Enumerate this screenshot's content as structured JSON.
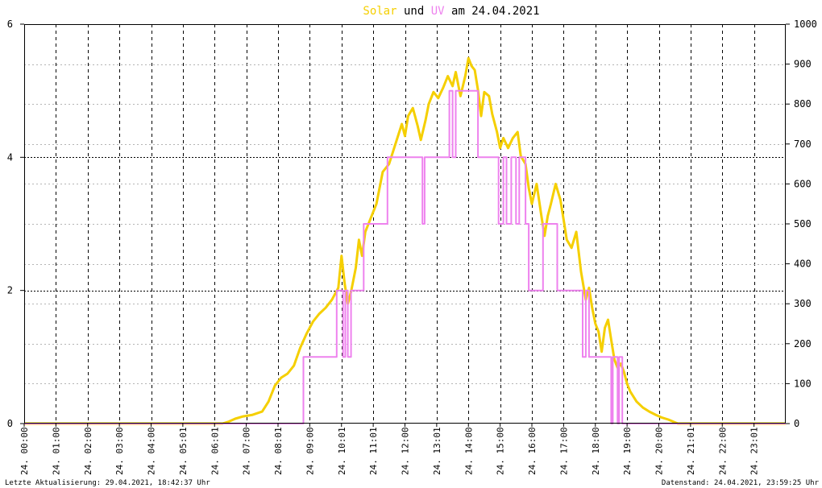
{
  "chart_data": {
    "type": "line",
    "title": {
      "word1": "Solar",
      "word2": "und",
      "word3": "UV",
      "word4": "am 24.04.2021"
    },
    "colors": {
      "solar": "#f5cf00",
      "uv": "#ee82ee",
      "title_text": "#000000",
      "frame": "#000000",
      "grid": "#000000"
    },
    "y_left": {
      "min": 0,
      "max": 6,
      "ticks": [
        0,
        2,
        4,
        6
      ]
    },
    "y_right": {
      "min": 0,
      "max": 1000,
      "ticks": [
        0,
        100,
        200,
        300,
        400,
        500,
        600,
        700,
        800,
        900,
        1000
      ]
    },
    "x": {
      "min": 0,
      "max": 24,
      "unit": "hours"
    },
    "x_ticks": [
      {
        "h": 0,
        "label": "24. 00:00"
      },
      {
        "h": 1,
        "label": "24. 01:00"
      },
      {
        "h": 2,
        "label": "24. 02:00"
      },
      {
        "h": 3,
        "label": "24. 03:00"
      },
      {
        "h": 4,
        "label": "24. 04:00"
      },
      {
        "h": 5,
        "label": "24. 05:01"
      },
      {
        "h": 6,
        "label": "24. 06:01"
      },
      {
        "h": 7,
        "label": "24. 07:00"
      },
      {
        "h": 8,
        "label": "24. 08:01"
      },
      {
        "h": 9,
        "label": "24. 09:00"
      },
      {
        "h": 10,
        "label": "24. 10:01"
      },
      {
        "h": 11,
        "label": "24. 11:01"
      },
      {
        "h": 12,
        "label": "24. 12:00"
      },
      {
        "h": 13,
        "label": "24. 13:01"
      },
      {
        "h": 14,
        "label": "24. 14:00"
      },
      {
        "h": 15,
        "label": "24. 15:00"
      },
      {
        "h": 16,
        "label": "24. 16:00"
      },
      {
        "h": 17,
        "label": "24. 17:00"
      },
      {
        "h": 18,
        "label": "24. 18:00"
      },
      {
        "h": 19,
        "label": "24. 19:00"
      },
      {
        "h": 20,
        "label": "24. 20:00"
      },
      {
        "h": 21,
        "label": "24. 21:01"
      },
      {
        "h": 22,
        "label": "24. 22:00"
      },
      {
        "h": 23,
        "label": "24. 23:01"
      }
    ],
    "grid": true,
    "series": [
      {
        "name": "Solar",
        "axis": "right",
        "step": false,
        "points": [
          [
            0,
            0
          ],
          [
            6.25,
            0
          ],
          [
            6.45,
            5
          ],
          [
            6.65,
            12
          ],
          [
            6.9,
            18
          ],
          [
            7.2,
            22
          ],
          [
            7.5,
            30
          ],
          [
            7.7,
            55
          ],
          [
            7.9,
            95
          ],
          [
            8.1,
            115
          ],
          [
            8.3,
            125
          ],
          [
            8.5,
            145
          ],
          [
            8.7,
            190
          ],
          [
            8.9,
            225
          ],
          [
            9.1,
            255
          ],
          [
            9.3,
            275
          ],
          [
            9.5,
            290
          ],
          [
            9.7,
            310
          ],
          [
            9.9,
            340
          ],
          [
            10.0,
            420
          ],
          [
            10.1,
            350
          ],
          [
            10.2,
            300
          ],
          [
            10.3,
            330
          ],
          [
            10.45,
            390
          ],
          [
            10.55,
            460
          ],
          [
            10.65,
            420
          ],
          [
            10.75,
            480
          ],
          [
            10.9,
            510
          ],
          [
            11.1,
            550
          ],
          [
            11.3,
            630
          ],
          [
            11.5,
            650
          ],
          [
            11.7,
            700
          ],
          [
            11.9,
            750
          ],
          [
            12.0,
            720
          ],
          [
            12.1,
            770
          ],
          [
            12.25,
            790
          ],
          [
            12.4,
            745
          ],
          [
            12.5,
            710
          ],
          [
            12.65,
            760
          ],
          [
            12.75,
            800
          ],
          [
            12.9,
            830
          ],
          [
            13.05,
            815
          ],
          [
            13.2,
            840
          ],
          [
            13.35,
            870
          ],
          [
            13.5,
            845
          ],
          [
            13.6,
            880
          ],
          [
            13.75,
            820
          ],
          [
            13.9,
            870
          ],
          [
            14.0,
            915
          ],
          [
            14.1,
            895
          ],
          [
            14.2,
            885
          ],
          [
            14.3,
            835
          ],
          [
            14.4,
            770
          ],
          [
            14.5,
            830
          ],
          [
            14.65,
            820
          ],
          [
            14.75,
            775
          ],
          [
            14.9,
            730
          ],
          [
            15.0,
            690
          ],
          [
            15.1,
            715
          ],
          [
            15.25,
            690
          ],
          [
            15.4,
            715
          ],
          [
            15.55,
            730
          ],
          [
            15.65,
            670
          ],
          [
            15.8,
            650
          ],
          [
            15.9,
            590
          ],
          [
            16.0,
            550
          ],
          [
            16.15,
            600
          ],
          [
            16.3,
            520
          ],
          [
            16.4,
            470
          ],
          [
            16.5,
            520
          ],
          [
            16.6,
            550
          ],
          [
            16.75,
            600
          ],
          [
            16.9,
            560
          ],
          [
            17.0,
            510
          ],
          [
            17.1,
            460
          ],
          [
            17.25,
            440
          ],
          [
            17.4,
            480
          ],
          [
            17.55,
            380
          ],
          [
            17.7,
            310
          ],
          [
            17.8,
            340
          ],
          [
            17.9,
            290
          ],
          [
            18.0,
            250
          ],
          [
            18.1,
            230
          ],
          [
            18.2,
            180
          ],
          [
            18.3,
            240
          ],
          [
            18.4,
            260
          ],
          [
            18.5,
            210
          ],
          [
            18.6,
            160
          ],
          [
            18.7,
            140
          ],
          [
            18.8,
            150
          ],
          [
            18.9,
            130
          ],
          [
            19.0,
            100
          ],
          [
            19.1,
            80
          ],
          [
            19.3,
            55
          ],
          [
            19.5,
            40
          ],
          [
            19.7,
            30
          ],
          [
            19.9,
            22
          ],
          [
            20.1,
            15
          ],
          [
            20.3,
            10
          ],
          [
            20.45,
            5
          ],
          [
            20.6,
            0
          ],
          [
            24,
            0
          ]
        ]
      },
      {
        "name": "UV",
        "axis": "left",
        "step": true,
        "points": [
          [
            0,
            0
          ],
          [
            8.8,
            0
          ],
          [
            8.8,
            1
          ],
          [
            9.85,
            1
          ],
          [
            9.85,
            2
          ],
          [
            10.05,
            2
          ],
          [
            10.05,
            1
          ],
          [
            10.12,
            1
          ],
          [
            10.12,
            2
          ],
          [
            10.2,
            2
          ],
          [
            10.2,
            1
          ],
          [
            10.3,
            1
          ],
          [
            10.3,
            2
          ],
          [
            10.7,
            2
          ],
          [
            10.7,
            3
          ],
          [
            11.45,
            3
          ],
          [
            11.45,
            4
          ],
          [
            12.55,
            4
          ],
          [
            12.55,
            3
          ],
          [
            12.62,
            3
          ],
          [
            12.62,
            4
          ],
          [
            13.4,
            4
          ],
          [
            13.4,
            5
          ],
          [
            13.5,
            5
          ],
          [
            13.5,
            4
          ],
          [
            13.6,
            4
          ],
          [
            13.6,
            5
          ],
          [
            14.3,
            5
          ],
          [
            14.3,
            4
          ],
          [
            14.95,
            4
          ],
          [
            14.95,
            3
          ],
          [
            15.1,
            3
          ],
          [
            15.1,
            4
          ],
          [
            15.2,
            4
          ],
          [
            15.2,
            3
          ],
          [
            15.35,
            3
          ],
          [
            15.35,
            4
          ],
          [
            15.5,
            4
          ],
          [
            15.5,
            3
          ],
          [
            15.6,
            3
          ],
          [
            15.6,
            4
          ],
          [
            15.8,
            4
          ],
          [
            15.8,
            3
          ],
          [
            15.9,
            3
          ],
          [
            15.9,
            2
          ],
          [
            16.35,
            2
          ],
          [
            16.35,
            3
          ],
          [
            16.8,
            3
          ],
          [
            16.8,
            2
          ],
          [
            17.6,
            2
          ],
          [
            17.6,
            1
          ],
          [
            17.7,
            1
          ],
          [
            17.7,
            2
          ],
          [
            17.8,
            2
          ],
          [
            17.8,
            1
          ],
          [
            18.5,
            1
          ],
          [
            18.5,
            0
          ],
          [
            18.55,
            0
          ],
          [
            18.55,
            1
          ],
          [
            18.7,
            1
          ],
          [
            18.7,
            0
          ],
          [
            18.75,
            0
          ],
          [
            18.75,
            1
          ],
          [
            18.85,
            1
          ],
          [
            18.85,
            0
          ],
          [
            24,
            0
          ]
        ]
      }
    ]
  },
  "footer": {
    "left": "Letzte Aktualisierung: 29.04.2021, 18:42:37 Uhr",
    "right": "Datenstand: 24.04.2021, 23:59:25 Uhr"
  }
}
